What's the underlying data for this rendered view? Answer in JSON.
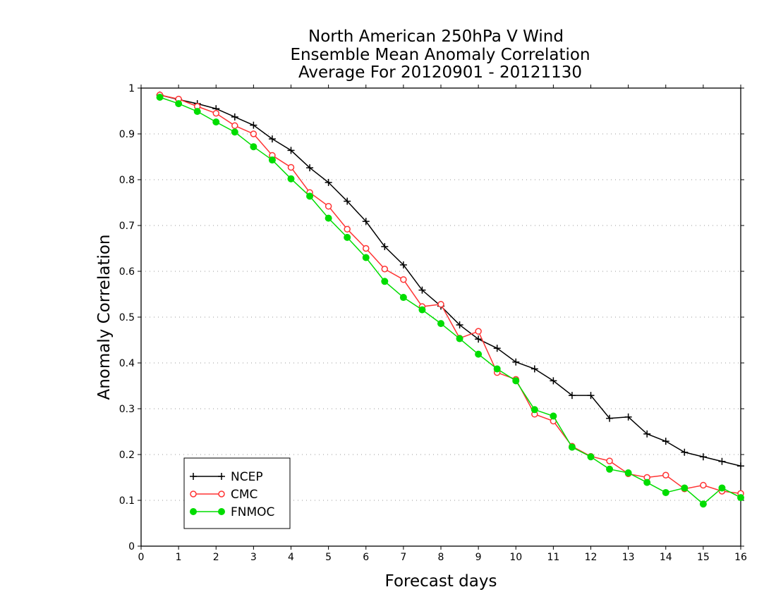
{
  "chart_data": {
    "type": "line",
    "title_lines": [
      "North American 250hPa V Wind",
      "Ensemble Mean Anomaly Correlation",
      "Average For 20120901 - 20121130"
    ],
    "xlabel": "Forecast days",
    "ylabel": "Anomaly Correlation",
    "xlim": [
      0,
      16
    ],
    "ylim": [
      0,
      1
    ],
    "x_ticks": [
      0,
      1,
      2,
      3,
      4,
      5,
      6,
      7,
      8,
      9,
      10,
      11,
      12,
      13,
      14,
      15,
      16
    ],
    "y_ticks": [
      0,
      0.1,
      0.2,
      0.3,
      0.4,
      0.5,
      0.6,
      0.7,
      0.8,
      0.9,
      1
    ],
    "y_tick_labels": [
      "0",
      "0.1",
      "0.2",
      "0.3",
      "0.4",
      "0.5",
      "0.6",
      "0.7",
      "0.8",
      "0.9",
      "1"
    ],
    "grid": "horizontal dotted",
    "legend_position": "bottom-left",
    "x": [
      0.5,
      1,
      1.5,
      2,
      2.5,
      3,
      3.5,
      4,
      4.5,
      5,
      5.5,
      6,
      6.5,
      7,
      7.5,
      8,
      8.5,
      9,
      9.5,
      10,
      10.5,
      11,
      11.5,
      12,
      12.5,
      13,
      13.5,
      14,
      14.5,
      15,
      15.5,
      16
    ],
    "series": [
      {
        "name": "NCEP",
        "color": "#000000",
        "marker": "plus",
        "values": [
          0.985,
          0.975,
          0.966,
          0.955,
          0.937,
          0.919,
          0.889,
          0.864,
          0.826,
          0.794,
          0.753,
          0.709,
          0.654,
          0.614,
          0.559,
          0.524,
          0.483,
          0.452,
          0.432,
          0.402,
          0.387,
          0.361,
          0.329,
          0.329,
          0.279,
          0.282,
          0.245,
          0.229,
          0.205,
          0.195,
          0.185,
          0.175
        ]
      },
      {
        "name": "CMC",
        "color": "#ff3333",
        "marker": "open-circle",
        "values": [
          0.985,
          0.976,
          0.96,
          0.945,
          0.918,
          0.9,
          0.853,
          0.827,
          0.772,
          0.742,
          0.692,
          0.65,
          0.605,
          0.582,
          0.523,
          0.528,
          0.454,
          0.469,
          0.379,
          0.364,
          0.288,
          0.273,
          0.218,
          0.196,
          0.186,
          0.158,
          0.15,
          0.155,
          0.125,
          0.133,
          0.12,
          0.115
        ]
      },
      {
        "name": "FNMOC",
        "color": "#00dd00",
        "marker": "filled-circle",
        "values": [
          0.98,
          0.966,
          0.949,
          0.926,
          0.904,
          0.872,
          0.843,
          0.802,
          0.764,
          0.716,
          0.674,
          0.63,
          0.578,
          0.543,
          0.516,
          0.486,
          0.453,
          0.419,
          0.387,
          0.361,
          0.298,
          0.284,
          0.216,
          0.195,
          0.168,
          0.16,
          0.139,
          0.117,
          0.127,
          0.092,
          0.127,
          0.106
        ]
      }
    ]
  }
}
